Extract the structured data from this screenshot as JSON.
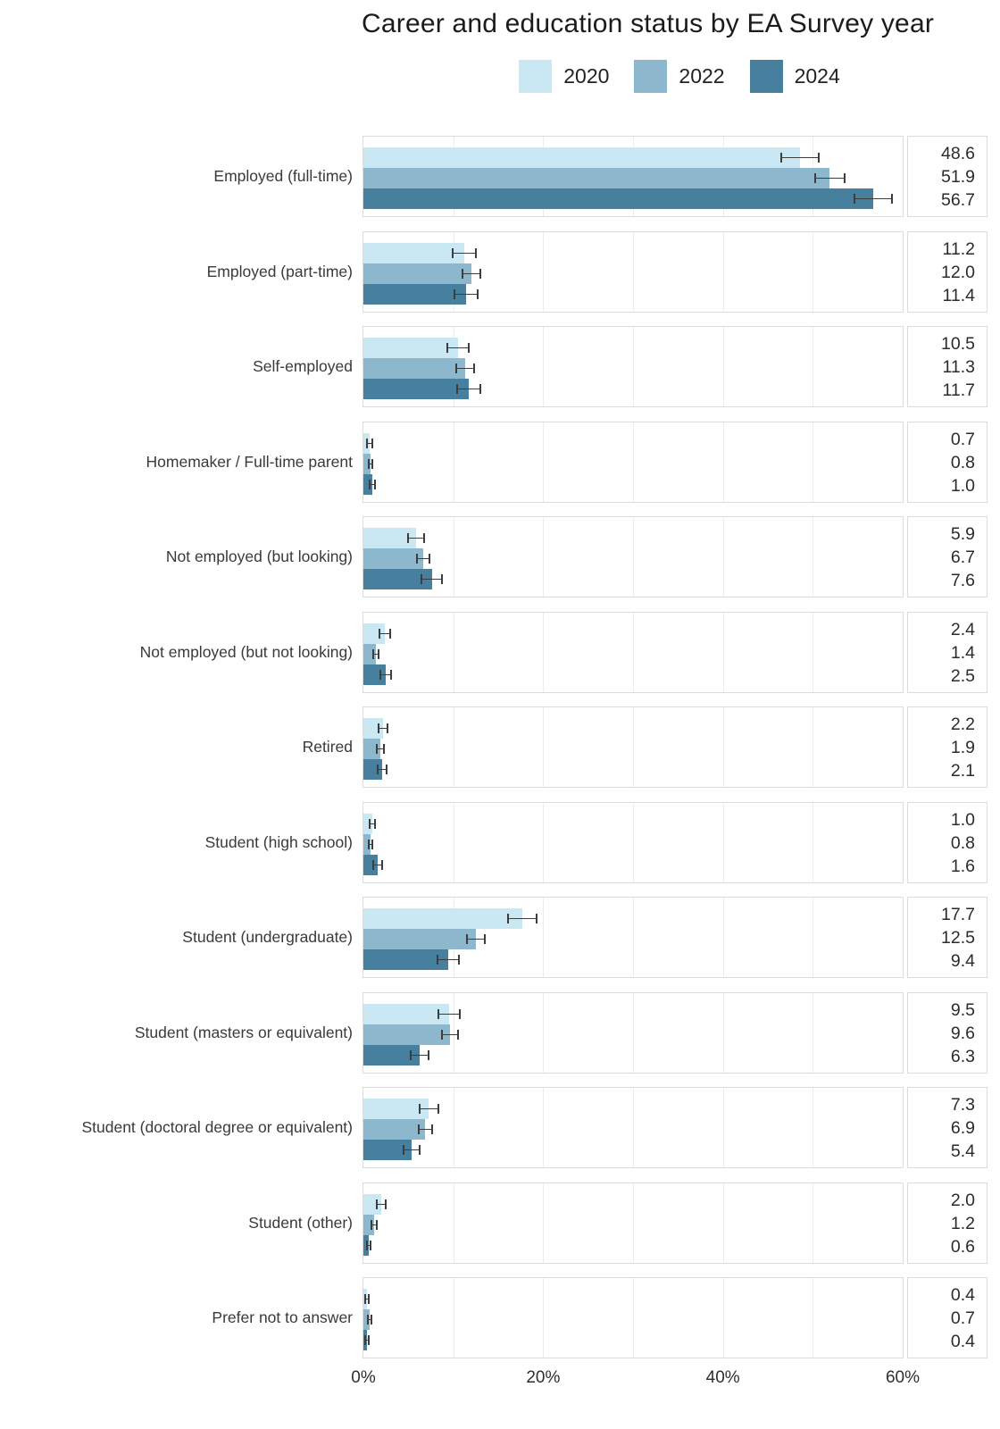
{
  "title": "Career and education status by EA Survey year",
  "legend": {
    "items": [
      {
        "label": "2020",
        "color": "#c9e8f4"
      },
      {
        "label": "2022",
        "color": "#8cb7cc"
      },
      {
        "label": "2024",
        "color": "#47809e"
      }
    ]
  },
  "chart_data": {
    "type": "bar",
    "orientation": "horizontal",
    "title": "Career and education status by EA Survey year",
    "legend_position": "top",
    "grid": "vertical lines every 10%",
    "xlim": [
      0,
      60
    ],
    "x_ticks": [
      {
        "label": "0%",
        "value": 0
      },
      {
        "label": "20%",
        "value": 20
      },
      {
        "label": "40%",
        "value": 40
      },
      {
        "label": "60%",
        "value": 60
      }
    ],
    "categories": [
      "Employed (full-time)",
      "Employed (part-time)",
      "Self-employed",
      "Homemaker / Full-time parent",
      "Not employed (but looking)",
      "Not employed (but not looking)",
      "Retired",
      "Student (high school)",
      "Student (undergraduate)",
      "Student (masters or equivalent)",
      "Student (doctoral degree or equivalent)",
      "Student (other)",
      "Prefer not to answer"
    ],
    "series": [
      {
        "name": "2020",
        "color": "#c9e8f4",
        "values": [
          48.6,
          11.2,
          10.5,
          0.7,
          5.9,
          2.4,
          2.2,
          1.0,
          17.7,
          9.5,
          7.3,
          2.0,
          0.4
        ],
        "ci_halfwidth": [
          2.2,
          1.4,
          1.3,
          0.4,
          1.0,
          0.7,
          0.6,
          0.4,
          1.7,
          1.3,
          1.1,
          0.6,
          0.3
        ]
      },
      {
        "name": "2022",
        "color": "#8cb7cc",
        "values": [
          51.9,
          12.0,
          11.3,
          0.8,
          6.7,
          1.4,
          1.9,
          0.8,
          12.5,
          9.6,
          6.9,
          1.2,
          0.7
        ],
        "ci_halfwidth": [
          1.7,
          1.1,
          1.1,
          0.3,
          0.8,
          0.4,
          0.5,
          0.3,
          1.1,
          1.0,
          0.8,
          0.4,
          0.3
        ]
      },
      {
        "name": "2024",
        "color": "#47809e",
        "values": [
          56.7,
          11.4,
          11.7,
          1.0,
          7.6,
          2.5,
          2.1,
          1.6,
          9.4,
          6.3,
          5.4,
          0.6,
          0.4
        ],
        "ci_halfwidth": [
          2.2,
          1.4,
          1.4,
          0.4,
          1.2,
          0.7,
          0.6,
          0.6,
          1.3,
          1.1,
          1.0,
          0.3,
          0.3
        ]
      }
    ]
  }
}
